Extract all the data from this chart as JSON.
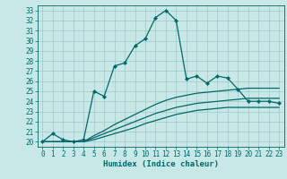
{
  "title": "",
  "xlabel": "Humidex (Indice chaleur)",
  "bg_color": "#c8e8e8",
  "grid_color": "#a0c8c8",
  "line_color": "#006868",
  "xlim": [
    -0.5,
    23.5
  ],
  "ylim": [
    19.5,
    33.5
  ],
  "yticks": [
    20,
    21,
    22,
    23,
    24,
    25,
    26,
    27,
    28,
    29,
    30,
    31,
    32,
    33
  ],
  "xticks": [
    0,
    1,
    2,
    3,
    4,
    5,
    6,
    7,
    8,
    9,
    10,
    11,
    12,
    13,
    14,
    15,
    16,
    17,
    18,
    19,
    20,
    21,
    22,
    23
  ],
  "main_x": [
    0,
    1,
    2,
    3,
    4,
    5,
    6,
    7,
    8,
    9,
    10,
    11,
    12,
    13,
    14,
    15,
    16,
    17,
    18,
    19,
    20,
    21,
    22,
    23
  ],
  "main_y": [
    20.0,
    20.8,
    20.2,
    20.0,
    20.2,
    25.0,
    24.5,
    27.5,
    27.8,
    29.5,
    30.2,
    32.3,
    33.0,
    32.0,
    26.2,
    26.5,
    25.8,
    26.5,
    26.3,
    25.2,
    24.0,
    24.0,
    24.0,
    23.8
  ],
  "line2_x": [
    0,
    1,
    2,
    3,
    4,
    5,
    6,
    7,
    8,
    9,
    10,
    11,
    12,
    13,
    14,
    15,
    16,
    17,
    18,
    19,
    20,
    21,
    22,
    23
  ],
  "line2_y": [
    20.0,
    20.0,
    20.0,
    20.0,
    20.0,
    20.6,
    21.1,
    21.7,
    22.2,
    22.7,
    23.2,
    23.7,
    24.1,
    24.4,
    24.6,
    24.8,
    24.9,
    25.0,
    25.1,
    25.2,
    25.3,
    25.3,
    25.3,
    25.3
  ],
  "line3_x": [
    0,
    1,
    2,
    3,
    4,
    5,
    6,
    7,
    8,
    9,
    10,
    11,
    12,
    13,
    14,
    15,
    16,
    17,
    18,
    19,
    20,
    21,
    22,
    23
  ],
  "line3_y": [
    20.0,
    20.0,
    20.0,
    20.0,
    20.0,
    20.4,
    20.8,
    21.2,
    21.6,
    22.0,
    22.4,
    22.8,
    23.1,
    23.4,
    23.6,
    23.8,
    23.9,
    24.0,
    24.1,
    24.2,
    24.3,
    24.3,
    24.3,
    24.3
  ],
  "line4_x": [
    0,
    1,
    2,
    3,
    4,
    5,
    6,
    7,
    8,
    9,
    10,
    11,
    12,
    13,
    14,
    15,
    16,
    17,
    18,
    19,
    20,
    21,
    22,
    23
  ],
  "line4_y": [
    20.0,
    20.0,
    20.0,
    20.0,
    20.0,
    20.2,
    20.5,
    20.8,
    21.1,
    21.4,
    21.8,
    22.1,
    22.4,
    22.7,
    22.9,
    23.1,
    23.2,
    23.3,
    23.4,
    23.4,
    23.4,
    23.4,
    23.4,
    23.4
  ],
  "tick_fontsize": 5.5,
  "xlabel_fontsize": 6.5,
  "lw": 0.9,
  "marker_size": 2.2
}
